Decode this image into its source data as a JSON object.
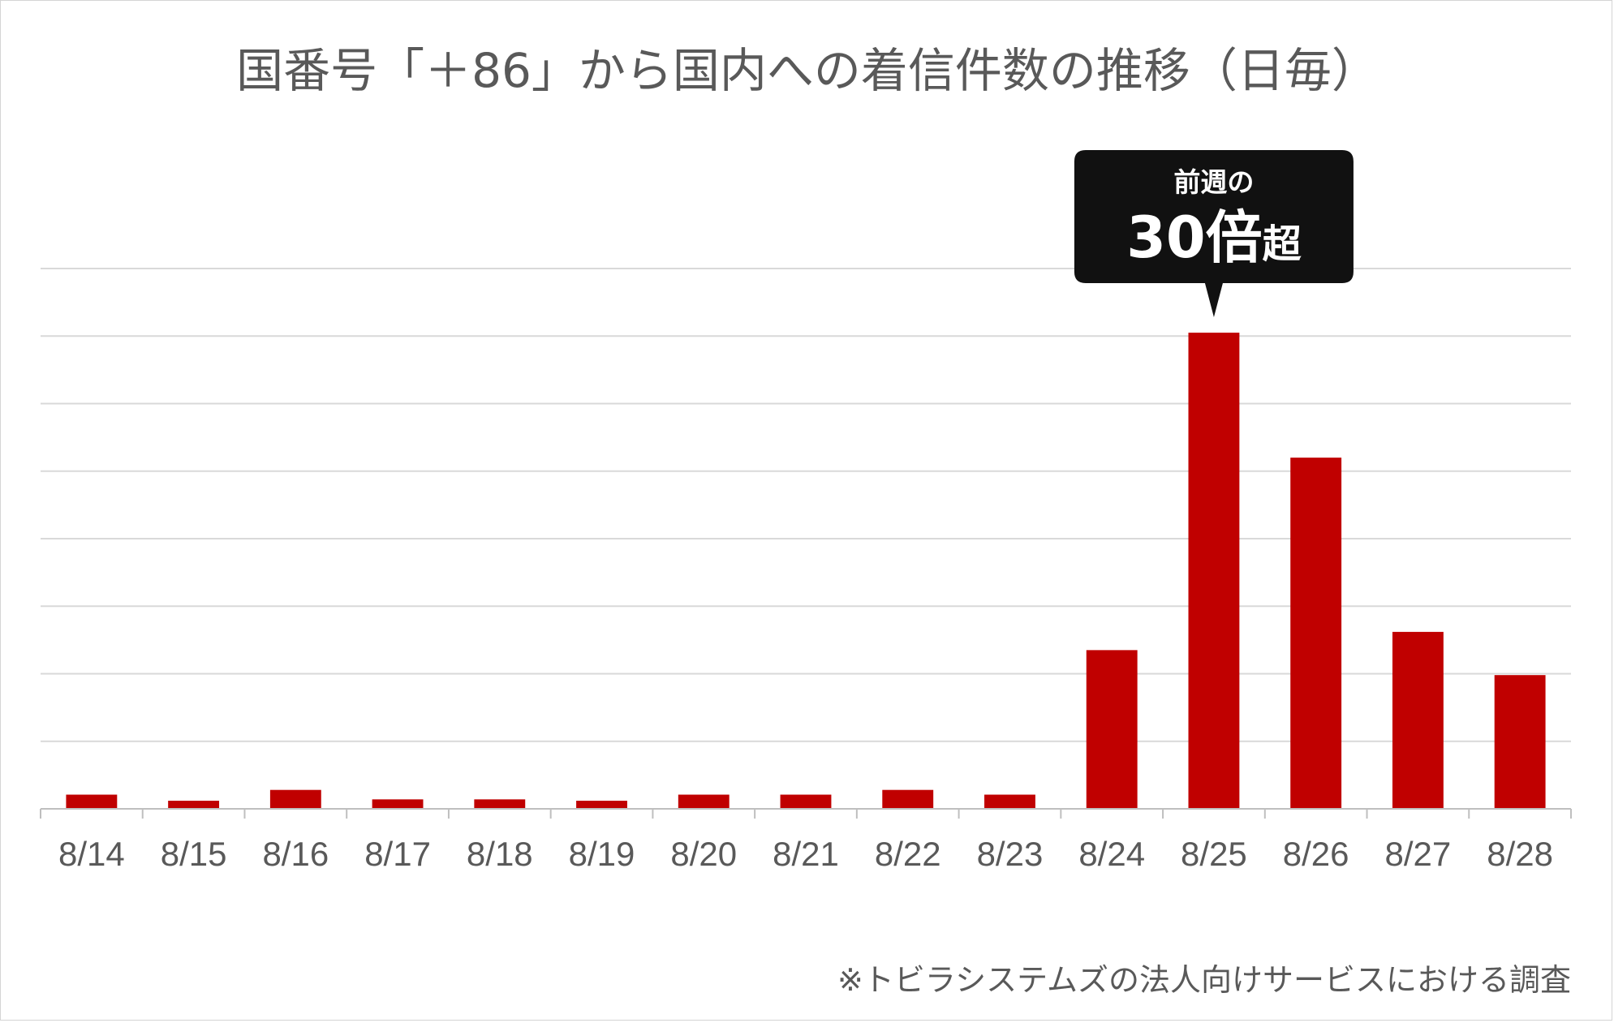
{
  "chart_data": {
    "type": "bar",
    "title": "国番号「＋86」から国内への着信件数の推移（日毎）",
    "categories": [
      "8/14",
      "8/15",
      "8/16",
      "8/17",
      "8/18",
      "8/19",
      "8/20",
      "8/21",
      "8/22",
      "8/23",
      "8/24",
      "8/25",
      "8/26",
      "8/27",
      "8/28"
    ],
    "values": [
      2.1,
      1.2,
      2.8,
      1.4,
      1.4,
      1.2,
      2.1,
      2.1,
      2.8,
      2.1,
      23.5,
      70.5,
      52,
      26.2,
      19.8
    ],
    "ylim": [
      0,
      80
    ],
    "y_gridlines": 8,
    "y_tick_labels_shown": false,
    "grid": true,
    "bar_color": "#c00000",
    "callout": {
      "category": "8/25",
      "line1": "前週の",
      "big": "30倍",
      "small": "超",
      "background": "#111111",
      "text_color": "#ffffff"
    },
    "note": "※トビラシステムズの法人向けサービスにおける調査"
  },
  "colors": {
    "gridline": "#d9d9d9",
    "axis": "#bfbfbf",
    "text": "#595959",
    "frame": "#d4d4d4"
  }
}
